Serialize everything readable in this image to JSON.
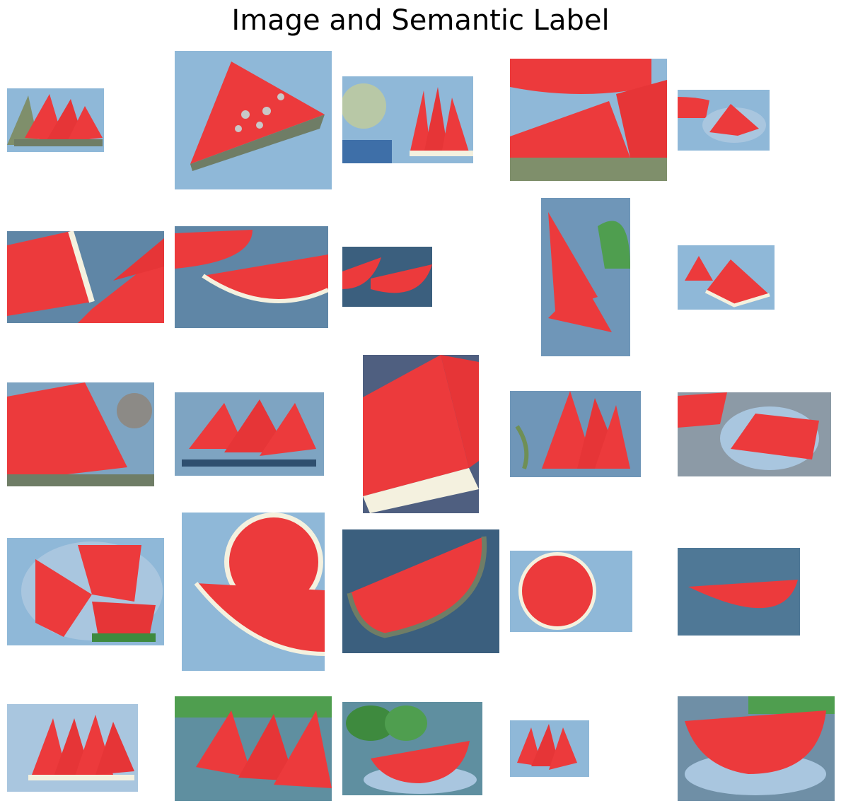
{
  "title": "Image and Semantic Label",
  "colors": {
    "label_overlay": "#8fb8d8",
    "flesh": "#ec3a3c",
    "flesh_dark": "#cf2a2e",
    "rind_white": "#f4f1df",
    "rind_green_overlay": "#6f7d66",
    "seed_light": "#c8c8c8",
    "seed_dark": "#1a1a1a"
  },
  "tiles": [
    {
      "id": "r1c1",
      "subject": "watermelon-slices-row"
    },
    {
      "id": "r1c2",
      "subject": "watermelon-single-wedge"
    },
    {
      "id": "r1c3",
      "subject": "watermelon-whole-and-slices"
    },
    {
      "id": "r1c4",
      "subject": "watermelon-large-wedges"
    },
    {
      "id": "r1c5",
      "subject": "watermelon-plate-slices"
    },
    {
      "id": "r2c1",
      "subject": "watermelon-wedges-closeup"
    },
    {
      "id": "r2c2",
      "subject": "watermelon-halfmoon-slices"
    },
    {
      "id": "r2c3",
      "subject": "watermelon-two-slices"
    },
    {
      "id": "r2c4",
      "subject": "watermelon-tall-wedges"
    },
    {
      "id": "r2c5",
      "subject": "watermelon-two-small-wedges"
    },
    {
      "id": "r3c1",
      "subject": "watermelon-stacked-wedges"
    },
    {
      "id": "r3c2",
      "subject": "watermelon-wedges-on-plate"
    },
    {
      "id": "r3c3",
      "subject": "watermelon-closeup-dark"
    },
    {
      "id": "r3c4",
      "subject": "watermelon-upright-wedges"
    },
    {
      "id": "r3c5",
      "subject": "watermelon-plate-arrangement"
    },
    {
      "id": "r4c1",
      "subject": "watermelon-round-slices-plate"
    },
    {
      "id": "r4c2",
      "subject": "watermelon-round-and-wedge"
    },
    {
      "id": "r4c3",
      "subject": "watermelon-large-halfmoon"
    },
    {
      "id": "r4c4",
      "subject": "watermelon-round-slice"
    },
    {
      "id": "r4c5",
      "subject": "watermelon-halfmoon-outdoor"
    },
    {
      "id": "r5c1",
      "subject": "watermelon-triangle-wedges"
    },
    {
      "id": "r5c2",
      "subject": "watermelon-wedges-garden"
    },
    {
      "id": "r5c3",
      "subject": "watermelon-halfmoon-plate"
    },
    {
      "id": "r5c4",
      "subject": "watermelon-small-wedges"
    },
    {
      "id": "r5c5",
      "subject": "watermelon-halfmoon-table"
    }
  ]
}
